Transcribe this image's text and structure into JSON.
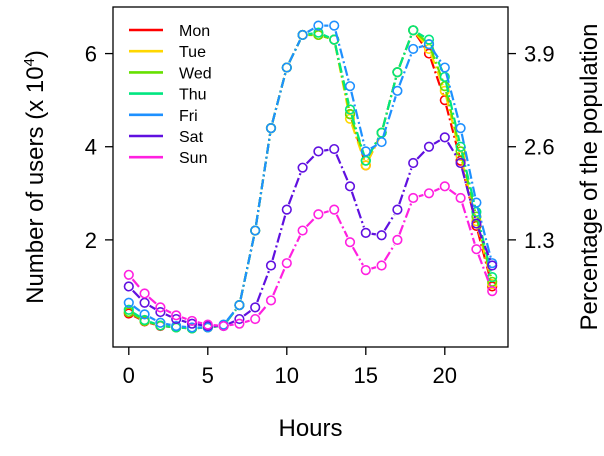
{
  "chart_data": {
    "type": "line",
    "xlabel": "Hours",
    "ylabel_main": "Number of users (x 10",
    "ylabel_sup": "4",
    "ylabel_end": ")",
    "ylabel_right": "Percentage of the population",
    "xlim": [
      -1,
      24
    ],
    "ylim": [
      -0.3,
      7.0
    ],
    "x_ticks": [
      0,
      5,
      10,
      15,
      20
    ],
    "y_ticks": [
      2,
      4,
      6
    ],
    "y_right_ticks": [
      "1.3",
      "2.6",
      "3.9"
    ],
    "legend_position": "top-left",
    "grid": false,
    "x": [
      0,
      1,
      2,
      3,
      4,
      5,
      6,
      7,
      8,
      9,
      10,
      11,
      12,
      13,
      14,
      15,
      16,
      17,
      18,
      19,
      20,
      21,
      22,
      23
    ],
    "series": [
      {
        "name": "Mon",
        "color": "#ff0000",
        "values": [
          0.42,
          0.25,
          0.15,
          0.12,
          0.1,
          0.12,
          0.16,
          0.6,
          2.2,
          4.4,
          5.7,
          6.4,
          6.4,
          6.3,
          4.7,
          3.6,
          4.3,
          5.6,
          6.5,
          6.0,
          5.0,
          3.7,
          2.3,
          1.0
        ]
      },
      {
        "name": "Tue",
        "color": "#ffd700",
        "values": [
          0.45,
          0.26,
          0.16,
          0.12,
          0.1,
          0.12,
          0.16,
          0.6,
          2.2,
          4.4,
          5.7,
          6.4,
          6.4,
          6.3,
          4.6,
          3.6,
          4.3,
          5.6,
          6.5,
          6.1,
          5.2,
          3.8,
          2.4,
          1.05
        ]
      },
      {
        "name": "Wed",
        "color": "#66e000",
        "values": [
          0.45,
          0.26,
          0.16,
          0.12,
          0.1,
          0.12,
          0.16,
          0.6,
          2.2,
          4.4,
          5.7,
          6.4,
          6.4,
          6.3,
          4.7,
          3.7,
          4.3,
          5.6,
          6.5,
          6.2,
          5.3,
          3.9,
          2.5,
          1.1
        ]
      },
      {
        "name": "Thu",
        "color": "#00e680",
        "values": [
          0.5,
          0.28,
          0.16,
          0.12,
          0.1,
          0.12,
          0.16,
          0.6,
          2.2,
          4.4,
          5.7,
          6.4,
          6.45,
          6.3,
          4.8,
          3.7,
          4.3,
          5.6,
          6.5,
          6.3,
          5.5,
          4.0,
          2.6,
          1.2
        ]
      },
      {
        "name": "Fri",
        "color": "#1e90ff",
        "values": [
          0.65,
          0.4,
          0.22,
          0.15,
          0.12,
          0.12,
          0.18,
          0.6,
          2.2,
          4.4,
          5.7,
          6.4,
          6.6,
          6.6,
          5.3,
          3.9,
          4.1,
          5.2,
          6.1,
          6.2,
          5.7,
          4.4,
          2.8,
          1.5
        ]
      },
      {
        "name": "Sat",
        "color": "#6010e0",
        "values": [
          1.0,
          0.65,
          0.45,
          0.3,
          0.2,
          0.15,
          0.15,
          0.3,
          0.55,
          1.45,
          2.65,
          3.55,
          3.9,
          3.95,
          3.15,
          2.15,
          2.1,
          2.65,
          3.65,
          4.0,
          4.2,
          3.65,
          2.35,
          1.45
        ]
      },
      {
        "name": "Sun",
        "color": "#ff20e0",
        "values": [
          1.25,
          0.85,
          0.55,
          0.38,
          0.26,
          0.18,
          0.15,
          0.2,
          0.3,
          0.7,
          1.5,
          2.2,
          2.55,
          2.65,
          1.95,
          1.35,
          1.45,
          2.0,
          2.9,
          3.0,
          3.15,
          2.9,
          1.8,
          0.9
        ]
      }
    ]
  }
}
